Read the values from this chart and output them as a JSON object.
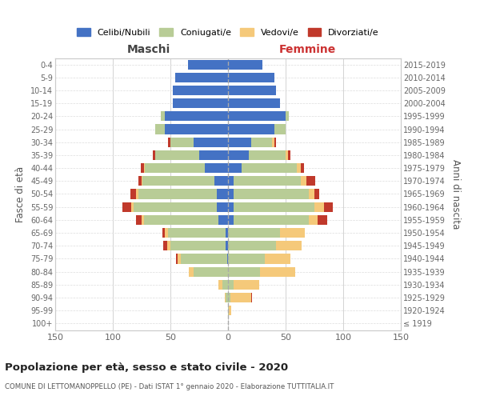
{
  "age_groups": [
    "100+",
    "95-99",
    "90-94",
    "85-89",
    "80-84",
    "75-79",
    "70-74",
    "65-69",
    "60-64",
    "55-59",
    "50-54",
    "45-49",
    "40-44",
    "35-39",
    "30-34",
    "25-29",
    "20-24",
    "15-19",
    "10-14",
    "5-9",
    "0-4"
  ],
  "birth_years": [
    "≤ 1919",
    "1920-1924",
    "1925-1929",
    "1930-1934",
    "1935-1939",
    "1940-1944",
    "1945-1949",
    "1950-1954",
    "1955-1959",
    "1960-1964",
    "1965-1969",
    "1970-1974",
    "1975-1979",
    "1980-1984",
    "1985-1989",
    "1990-1994",
    "1995-1999",
    "2000-2004",
    "2005-2009",
    "2010-2014",
    "2015-2019"
  ],
  "maschi": {
    "celibi": [
      0,
      0,
      0,
      0,
      0,
      1,
      2,
      2,
      8,
      10,
      10,
      12,
      20,
      25,
      30,
      55,
      55,
      48,
      48,
      46,
      35
    ],
    "coniugati": [
      0,
      0,
      2,
      5,
      30,
      40,
      48,
      50,
      65,
      72,
      68,
      62,
      52,
      38,
      20,
      8,
      3,
      0,
      0,
      0,
      0
    ],
    "vedovi": [
      0,
      0,
      1,
      3,
      4,
      3,
      3,
      3,
      2,
      2,
      2,
      1,
      1,
      0,
      0,
      0,
      0,
      0,
      0,
      0,
      0
    ],
    "divorziati": [
      0,
      0,
      0,
      0,
      0,
      1,
      3,
      2,
      5,
      8,
      5,
      3,
      3,
      2,
      2,
      0,
      0,
      0,
      0,
      0,
      0
    ]
  },
  "femmine": {
    "nubili": [
      0,
      0,
      0,
      0,
      0,
      0,
      0,
      0,
      5,
      5,
      5,
      5,
      12,
      18,
      20,
      40,
      50,
      45,
      42,
      40,
      30
    ],
    "coniugate": [
      0,
      1,
      2,
      5,
      28,
      32,
      42,
      45,
      65,
      70,
      65,
      58,
      48,
      32,
      18,
      10,
      3,
      0,
      0,
      0,
      0
    ],
    "vedove": [
      0,
      2,
      18,
      22,
      30,
      22,
      22,
      22,
      8,
      8,
      5,
      5,
      3,
      2,
      2,
      0,
      0,
      0,
      0,
      0,
      0
    ],
    "divorziate": [
      0,
      0,
      1,
      0,
      0,
      0,
      0,
      0,
      8,
      8,
      4,
      8,
      3,
      2,
      2,
      0,
      0,
      0,
      0,
      0,
      0
    ]
  },
  "colors": {
    "celibi": "#4472c4",
    "coniugati": "#b8cc96",
    "vedovi": "#f5c97a",
    "divorziati": "#c0392b"
  },
  "title": "Popolazione per età, sesso e stato civile - 2020",
  "subtitle": "COMUNE DI LETTOMANOPPELLO (PE) - Dati ISTAT 1° gennaio 2020 - Elaborazione TUTTITALIA.IT",
  "ylabel_left": "Fasce di età",
  "ylabel_right": "Anni di nascita",
  "xlim": 150,
  "legend_labels": [
    "Celibi/Nubili",
    "Coniugati/e",
    "Vedovi/e",
    "Divorziati/e"
  ],
  "maschi_label": "Maschi",
  "femmine_label": "Femmine",
  "bg_color": "#ffffff"
}
